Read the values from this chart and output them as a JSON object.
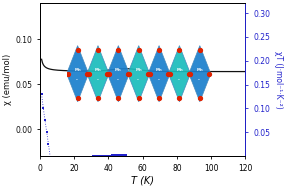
{
  "title": "",
  "xlabel": "T (K)",
  "ylabel_left": "χ (emu/mol)",
  "ylabel_right": "χT (J·mol⁻¹·K⁻²)",
  "xlim": [
    0,
    120
  ],
  "ylim_left": [
    -0.03,
    0.14
  ],
  "ylim_right": [
    0.0,
    0.32
  ],
  "left_yticks": [
    0.0,
    0.05,
    0.1
  ],
  "right_yticks": [
    0.05,
    0.1,
    0.15,
    0.2,
    0.25,
    0.3
  ],
  "xticks": [
    0,
    20,
    40,
    60,
    80,
    100,
    120
  ],
  "black_color": "#111111",
  "blue_color": "#2222cc",
  "bg_color": "#ffffff",
  "figsize": [
    2.86,
    1.89
  ],
  "dpi": 100,
  "shape_colors_alt": [
    "#1a7fcc",
    "#1abcbc"
  ],
  "shape_edge_color": "#4488bb",
  "red_dot_color": "#dd2200",
  "gray_conn_color": "#999999"
}
